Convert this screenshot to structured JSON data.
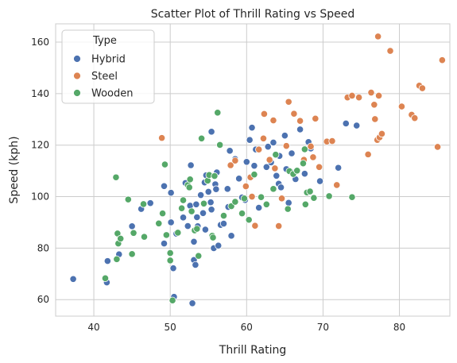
{
  "chart_data": {
    "type": "scatter",
    "title": "Scatter Plot of Thrill Rating vs Speed",
    "xlabel": "Thrill Rating",
    "ylabel": "Speed (kph)",
    "xlim": [
      35,
      86.6
    ],
    "ylim": [
      53.6,
      167.1
    ],
    "xticks": [
      40,
      50,
      60,
      70,
      80
    ],
    "yticks": [
      60,
      80,
      100,
      120,
      140,
      160
    ],
    "grid": true,
    "background": "#ffffff",
    "grid_color": "#cccccc",
    "legend": {
      "title": "Type",
      "position": "top-left"
    },
    "series": [
      {
        "name": "Hybrid",
        "color": "#4c72b0",
        "points": [
          [
            37.3,
            68.0
          ],
          [
            41.7,
            66.7
          ],
          [
            41.8,
            75.0
          ],
          [
            43.3,
            77.6
          ],
          [
            45.0,
            88.5
          ],
          [
            46.2,
            95.2
          ],
          [
            47.4,
            97.5
          ],
          [
            49.2,
            104.1
          ],
          [
            49.2,
            81.8
          ],
          [
            50.1,
            101.5
          ],
          [
            50.1,
            90.0
          ],
          [
            50.4,
            72.2
          ],
          [
            50.5,
            61.1
          ],
          [
            50.8,
            85.6
          ],
          [
            51.7,
            91.9
          ],
          [
            52.0,
            105.3
          ],
          [
            52.3,
            88.6
          ],
          [
            52.6,
            96.5
          ],
          [
            52.7,
            112.2
          ],
          [
            52.9,
            58.6
          ],
          [
            53.1,
            82.5
          ],
          [
            53.1,
            75.4
          ],
          [
            53.3,
            73.5
          ],
          [
            53.4,
            97.0
          ],
          [
            53.5,
            92.0
          ],
          [
            53.6,
            88.5
          ],
          [
            54.0,
            100.6
          ],
          [
            54.3,
            93.6
          ],
          [
            54.5,
            105.5
          ],
          [
            54.6,
            87.2
          ],
          [
            54.7,
            108.3
          ],
          [
            55.0,
            101.9
          ],
          [
            55.3,
            97.8
          ],
          [
            55.4,
            125.2
          ],
          [
            55.4,
            95.0
          ],
          [
            55.7,
            80.0
          ],
          [
            55.9,
            104.8
          ],
          [
            56.0,
            102.9
          ],
          [
            56.1,
            109.4
          ],
          [
            56.3,
            81.0
          ],
          [
            56.6,
            89.0
          ],
          [
            57.0,
            89.5
          ],
          [
            57.5,
            103.0
          ],
          [
            57.6,
            96.0
          ],
          [
            57.8,
            117.8
          ],
          [
            58.0,
            84.8
          ],
          [
            58.5,
            114.6
          ],
          [
            59.0,
            107.0
          ],
          [
            59.4,
            99.7
          ],
          [
            59.8,
            98.7
          ],
          [
            60.0,
            113.5
          ],
          [
            60.4,
            122.0
          ],
          [
            60.7,
            126.8
          ],
          [
            61.0,
            112.0
          ],
          [
            61.2,
            118.3
          ],
          [
            61.6,
            95.7
          ],
          [
            62.6,
            111.5
          ],
          [
            62.8,
            119.4
          ],
          [
            63.2,
            113.3
          ],
          [
            63.5,
            121.0
          ],
          [
            63.9,
            108.1
          ],
          [
            64.2,
            105.0
          ],
          [
            64.3,
            115.8
          ],
          [
            64.5,
            103.6
          ],
          [
            65.0,
            123.7
          ],
          [
            65.2,
            110.7
          ],
          [
            65.5,
            97.6
          ],
          [
            65.9,
            116.8
          ],
          [
            66.0,
            109.3
          ],
          [
            66.4,
            106.8
          ],
          [
            67.0,
            126.1
          ],
          [
            67.6,
            108.9
          ],
          [
            68.1,
            121.2
          ],
          [
            68.4,
            118.7
          ],
          [
            69.6,
            106.0
          ],
          [
            72.0,
            111.2
          ],
          [
            73.0,
            128.4
          ],
          [
            74.4,
            127.6
          ]
        ]
      },
      {
        "name": "Steel",
        "color": "#dd8452",
        "points": [
          [
            48.9,
            122.8
          ],
          [
            57.9,
            112.2
          ],
          [
            58.5,
            114.0
          ],
          [
            59.9,
            104.0
          ],
          [
            60.5,
            107.5
          ],
          [
            60.7,
            100.0
          ],
          [
            61.1,
            88.7
          ],
          [
            61.6,
            118.3
          ],
          [
            62.2,
            122.6
          ],
          [
            62.3,
            132.1
          ],
          [
            63.0,
            114.3
          ],
          [
            63.5,
            129.6
          ],
          [
            63.7,
            111.0
          ],
          [
            64.2,
            88.6
          ],
          [
            64.6,
            99.3
          ],
          [
            65.2,
            119.7
          ],
          [
            65.5,
            136.8
          ],
          [
            66.2,
            132.2
          ],
          [
            67.0,
            129.4
          ],
          [
            67.5,
            114.3
          ],
          [
            68.4,
            119.5
          ],
          [
            68.7,
            115.3
          ],
          [
            69.0,
            130.3
          ],
          [
            69.5,
            111.5
          ],
          [
            70.5,
            121.4
          ],
          [
            71.2,
            121.6
          ],
          [
            71.8,
            104.5
          ],
          [
            73.2,
            138.5
          ],
          [
            73.8,
            139.2
          ],
          [
            74.7,
            138.5
          ],
          [
            75.9,
            116.4
          ],
          [
            76.3,
            140.4
          ],
          [
            76.7,
            135.7
          ],
          [
            76.8,
            130.1
          ],
          [
            77.1,
            122.0
          ],
          [
            77.2,
            162.2
          ],
          [
            77.3,
            139.2
          ],
          [
            77.4,
            123.0
          ],
          [
            77.7,
            124.4
          ],
          [
            78.8,
            156.6
          ],
          [
            80.3,
            135.0
          ],
          [
            81.6,
            131.8
          ],
          [
            82.0,
            130.5
          ],
          [
            82.6,
            143.1
          ],
          [
            83.0,
            142.1
          ],
          [
            85.0,
            119.3
          ],
          [
            85.6,
            153.0
          ]
        ]
      },
      {
        "name": "Wooden",
        "color": "#55a868",
        "points": [
          [
            41.5,
            68.3
          ],
          [
            42.9,
            107.5
          ],
          [
            43.0,
            75.7
          ],
          [
            43.1,
            85.7
          ],
          [
            43.2,
            81.8
          ],
          [
            43.5,
            83.7
          ],
          [
            44.5,
            98.9
          ],
          [
            45.0,
            77.7
          ],
          [
            45.2,
            85.9
          ],
          [
            46.5,
            97.1
          ],
          [
            46.6,
            84.4
          ],
          [
            48.5,
            89.6
          ],
          [
            49.0,
            93.5
          ],
          [
            49.3,
            112.5
          ],
          [
            49.5,
            85.1
          ],
          [
            50.0,
            78.1
          ],
          [
            50.0,
            75.2
          ],
          [
            50.3,
            59.7
          ],
          [
            51.0,
            86.0
          ],
          [
            51.5,
            95.5
          ],
          [
            51.7,
            98.6
          ],
          [
            52.3,
            104.5
          ],
          [
            52.5,
            103.6
          ],
          [
            52.6,
            106.7
          ],
          [
            52.8,
            94.3
          ],
          [
            53.2,
            86.9
          ],
          [
            53.5,
            87.5
          ],
          [
            53.7,
            77.0
          ],
          [
            54.1,
            122.6
          ],
          [
            54.4,
            97.3
          ],
          [
            54.9,
            106.2
          ],
          [
            55.1,
            108.4
          ],
          [
            55.5,
            84.8
          ],
          [
            55.6,
            84.1
          ],
          [
            55.8,
            108.0
          ],
          [
            56.2,
            132.6
          ],
          [
            56.5,
            120.1
          ],
          [
            57.0,
            92.6
          ],
          [
            58.0,
            96.3
          ],
          [
            58.5,
            98.0
          ],
          [
            59.4,
            93.5
          ],
          [
            59.7,
            99.3
          ],
          [
            60.3,
            91.0
          ],
          [
            61.0,
            108.6
          ],
          [
            61.9,
            99.8
          ],
          [
            62.6,
            97.0
          ],
          [
            63.5,
            103.0
          ],
          [
            63.8,
            116.3
          ],
          [
            65.4,
            95.2
          ],
          [
            65.6,
            109.9
          ],
          [
            66.1,
            108.8
          ],
          [
            66.6,
            110.1
          ],
          [
            67.4,
            112.9
          ],
          [
            67.6,
            118.4
          ],
          [
            67.7,
            97.0
          ],
          [
            67.9,
            101.6
          ],
          [
            68.3,
            102.0
          ],
          [
            68.8,
            99.5
          ],
          [
            70.8,
            100.2
          ],
          [
            73.8,
            99.8
          ]
        ]
      }
    ]
  }
}
